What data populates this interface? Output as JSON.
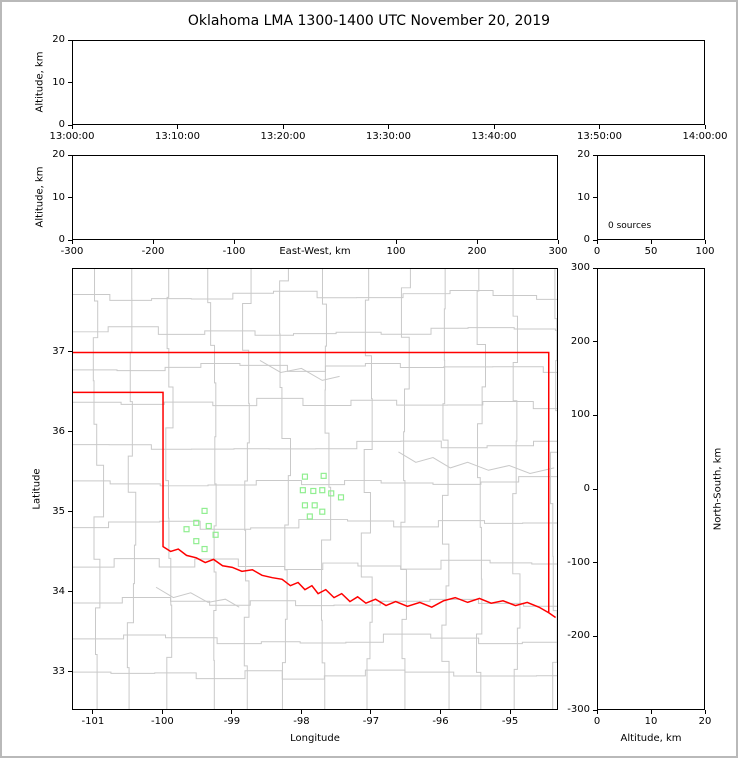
{
  "figure": {
    "title": "Oklahoma LMA 1300-1400 UTC November 20, 2019",
    "background": "#ffffff",
    "frame_color": "#b9b9b9",
    "axis_color": "#000000",
    "county_line_color": "#c9c9c9",
    "state_border_color": "#ff0000",
    "station_marker_color": "#90ee90"
  },
  "chart_data": [
    {
      "type": "scatter",
      "panel": "time-height",
      "ylabel": "Altitude, km",
      "xticks": [
        "13:00:00",
        "13:10:00",
        "13:20:00",
        "13:30:00",
        "13:40:00",
        "13:50:00",
        "14:00:00"
      ],
      "xlim": [
        "13:00:00",
        "14:00:00"
      ],
      "yticks": [
        0,
        10,
        20
      ],
      "ylim": [
        0,
        20
      ],
      "points": []
    },
    {
      "type": "scatter",
      "panel": "eastwest-height",
      "xlabel": "East-West, km",
      "ylabel": "Altitude, km",
      "xticks": [
        -300,
        -200,
        -100,
        100,
        200,
        300
      ],
      "xlim": [
        -300,
        300
      ],
      "yticks": [
        0,
        10,
        20
      ],
      "ylim": [
        0,
        20
      ],
      "points": []
    },
    {
      "type": "histogram",
      "panel": "altitude-source-histogram",
      "annotation": "0 sources",
      "xticks": [
        0,
        50,
        100
      ],
      "xlim": [
        0,
        100
      ],
      "yticks": [
        0,
        10,
        20
      ],
      "ylim": [
        0,
        20
      ],
      "values": []
    },
    {
      "type": "map-scatter",
      "panel": "plan-view",
      "xlabel": "Longitude",
      "ylabel": "Latitude",
      "xticks": [
        -101,
        -100,
        -99,
        -98,
        -97,
        -96,
        -95
      ],
      "xlim": [
        -101.3,
        -94.31
      ],
      "yticks": [
        33,
        34,
        35,
        36,
        37
      ],
      "ylim": [
        32.52,
        38.05
      ],
      "lma_stations_lonlat": [
        [
          -99.4,
          35.01
        ],
        [
          -99.52,
          34.86
        ],
        [
          -99.34,
          34.82
        ],
        [
          -99.66,
          34.78
        ],
        [
          -99.24,
          34.71
        ],
        [
          -99.52,
          34.63
        ],
        [
          -99.4,
          34.53
        ],
        [
          -97.95,
          35.44
        ],
        [
          -97.68,
          35.45
        ],
        [
          -97.98,
          35.27
        ],
        [
          -97.83,
          35.26
        ],
        [
          -97.7,
          35.27
        ],
        [
          -97.57,
          35.23
        ],
        [
          -97.43,
          35.18
        ],
        [
          -97.95,
          35.08
        ],
        [
          -97.81,
          35.08
        ],
        [
          -97.7,
          35.0
        ],
        [
          -97.88,
          34.94
        ]
      ],
      "state_border_segments": [
        [
          [
            -101.3,
            37.0
          ],
          [
            -94.43,
            37.0
          ],
          [
            -94.43,
            33.73
          ]
        ],
        [
          [
            -101.3,
            36.5
          ],
          [
            -100.0,
            36.5
          ],
          [
            -100.0,
            34.56
          ],
          [
            -99.89,
            34.5
          ],
          [
            -99.78,
            34.53
          ],
          [
            -99.66,
            34.45
          ],
          [
            -99.52,
            34.42
          ],
          [
            -99.39,
            34.36
          ],
          [
            -99.27,
            34.4
          ],
          [
            -99.14,
            34.32
          ],
          [
            -99.0,
            34.3
          ],
          [
            -98.86,
            34.25
          ],
          [
            -98.71,
            34.27
          ],
          [
            -98.57,
            34.2
          ],
          [
            -98.42,
            34.17
          ],
          [
            -98.28,
            34.15
          ],
          [
            -98.16,
            34.07
          ],
          [
            -98.05,
            34.11
          ],
          [
            -97.95,
            34.02
          ],
          [
            -97.85,
            34.07
          ],
          [
            -97.76,
            33.97
          ],
          [
            -97.65,
            34.02
          ],
          [
            -97.53,
            33.92
          ],
          [
            -97.42,
            33.97
          ],
          [
            -97.3,
            33.87
          ],
          [
            -97.19,
            33.93
          ],
          [
            -97.07,
            33.85
          ],
          [
            -96.93,
            33.9
          ],
          [
            -96.78,
            33.82
          ],
          [
            -96.64,
            33.87
          ],
          [
            -96.47,
            33.81
          ],
          [
            -96.29,
            33.86
          ],
          [
            -96.12,
            33.8
          ],
          [
            -95.95,
            33.88
          ],
          [
            -95.78,
            33.92
          ],
          [
            -95.6,
            33.86
          ],
          [
            -95.43,
            33.91
          ],
          [
            -95.26,
            33.85
          ],
          [
            -95.09,
            33.88
          ],
          [
            -94.91,
            33.82
          ],
          [
            -94.74,
            33.86
          ],
          [
            -94.57,
            33.8
          ],
          [
            -94.43,
            33.73
          ],
          [
            -94.33,
            33.67
          ]
        ]
      ],
      "river_lines": [
        [
          [
            -96.6,
            35.75
          ],
          [
            -96.35,
            35.62
          ],
          [
            -96.1,
            35.68
          ],
          [
            -95.85,
            35.55
          ],
          [
            -95.6,
            35.62
          ],
          [
            -95.3,
            35.52
          ],
          [
            -95.0,
            35.58
          ],
          [
            -94.7,
            35.48
          ],
          [
            -94.35,
            35.55
          ]
        ],
        [
          [
            -100.1,
            34.05
          ],
          [
            -99.85,
            33.92
          ],
          [
            -99.6,
            33.98
          ],
          [
            -99.35,
            33.86
          ],
          [
            -99.1,
            33.9
          ],
          [
            -98.9,
            33.8
          ]
        ],
        [
          [
            -98.6,
            36.9
          ],
          [
            -98.3,
            36.75
          ],
          [
            -98.0,
            36.8
          ],
          [
            -97.7,
            36.65
          ],
          [
            -97.45,
            36.7
          ]
        ]
      ],
      "points": []
    },
    {
      "type": "scatter",
      "panel": "height-northsouth",
      "xlabel": "Altitude, km",
      "ylabel": "North-South, km",
      "xticks": [
        0,
        10,
        20
      ],
      "xlim": [
        0,
        20
      ],
      "yticks": [
        300,
        200,
        100,
        0,
        -100,
        -200,
        -300
      ],
      "ylim": [
        -300,
        300
      ],
      "points": []
    }
  ]
}
